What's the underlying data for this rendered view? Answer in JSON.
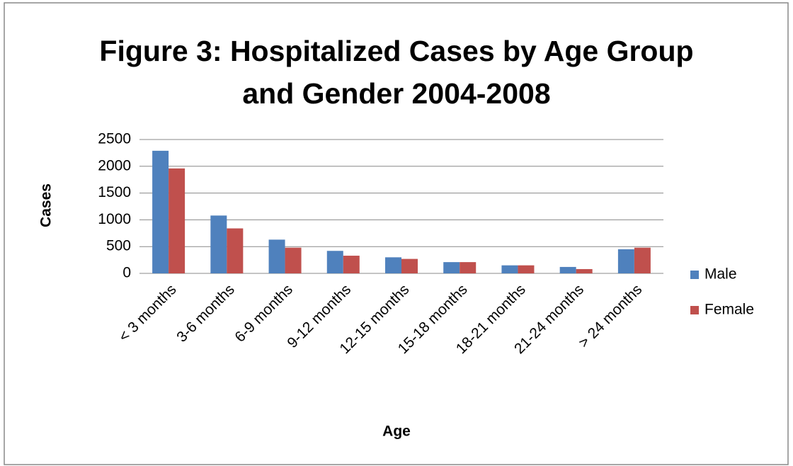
{
  "chart_data": {
    "type": "bar",
    "title": "Figure 3: Hospitalized Cases by Age Group and Gender 2004-2008",
    "x_label": "Age",
    "y_label": "Cases",
    "categories": [
      "< 3 months",
      "3-6 months",
      "6-9 months",
      "9-12 months",
      "12-15 months",
      "15-18 months",
      "18-21 months",
      "21-24 months",
      "> 24 months"
    ],
    "series": [
      {
        "name": "Male",
        "color": "#4f81bd",
        "values": [
          2290,
          1080,
          630,
          420,
          300,
          210,
          150,
          120,
          450
        ]
      },
      {
        "name": "Female",
        "color": "#c0504d",
        "values": [
          1960,
          840,
          480,
          330,
          270,
          210,
          150,
          80,
          480
        ]
      }
    ],
    "ylim": [
      0,
      2500
    ],
    "yticks": [
      0,
      500,
      1000,
      1500,
      2000,
      2500
    ],
    "grid": true,
    "legend": "right"
  }
}
